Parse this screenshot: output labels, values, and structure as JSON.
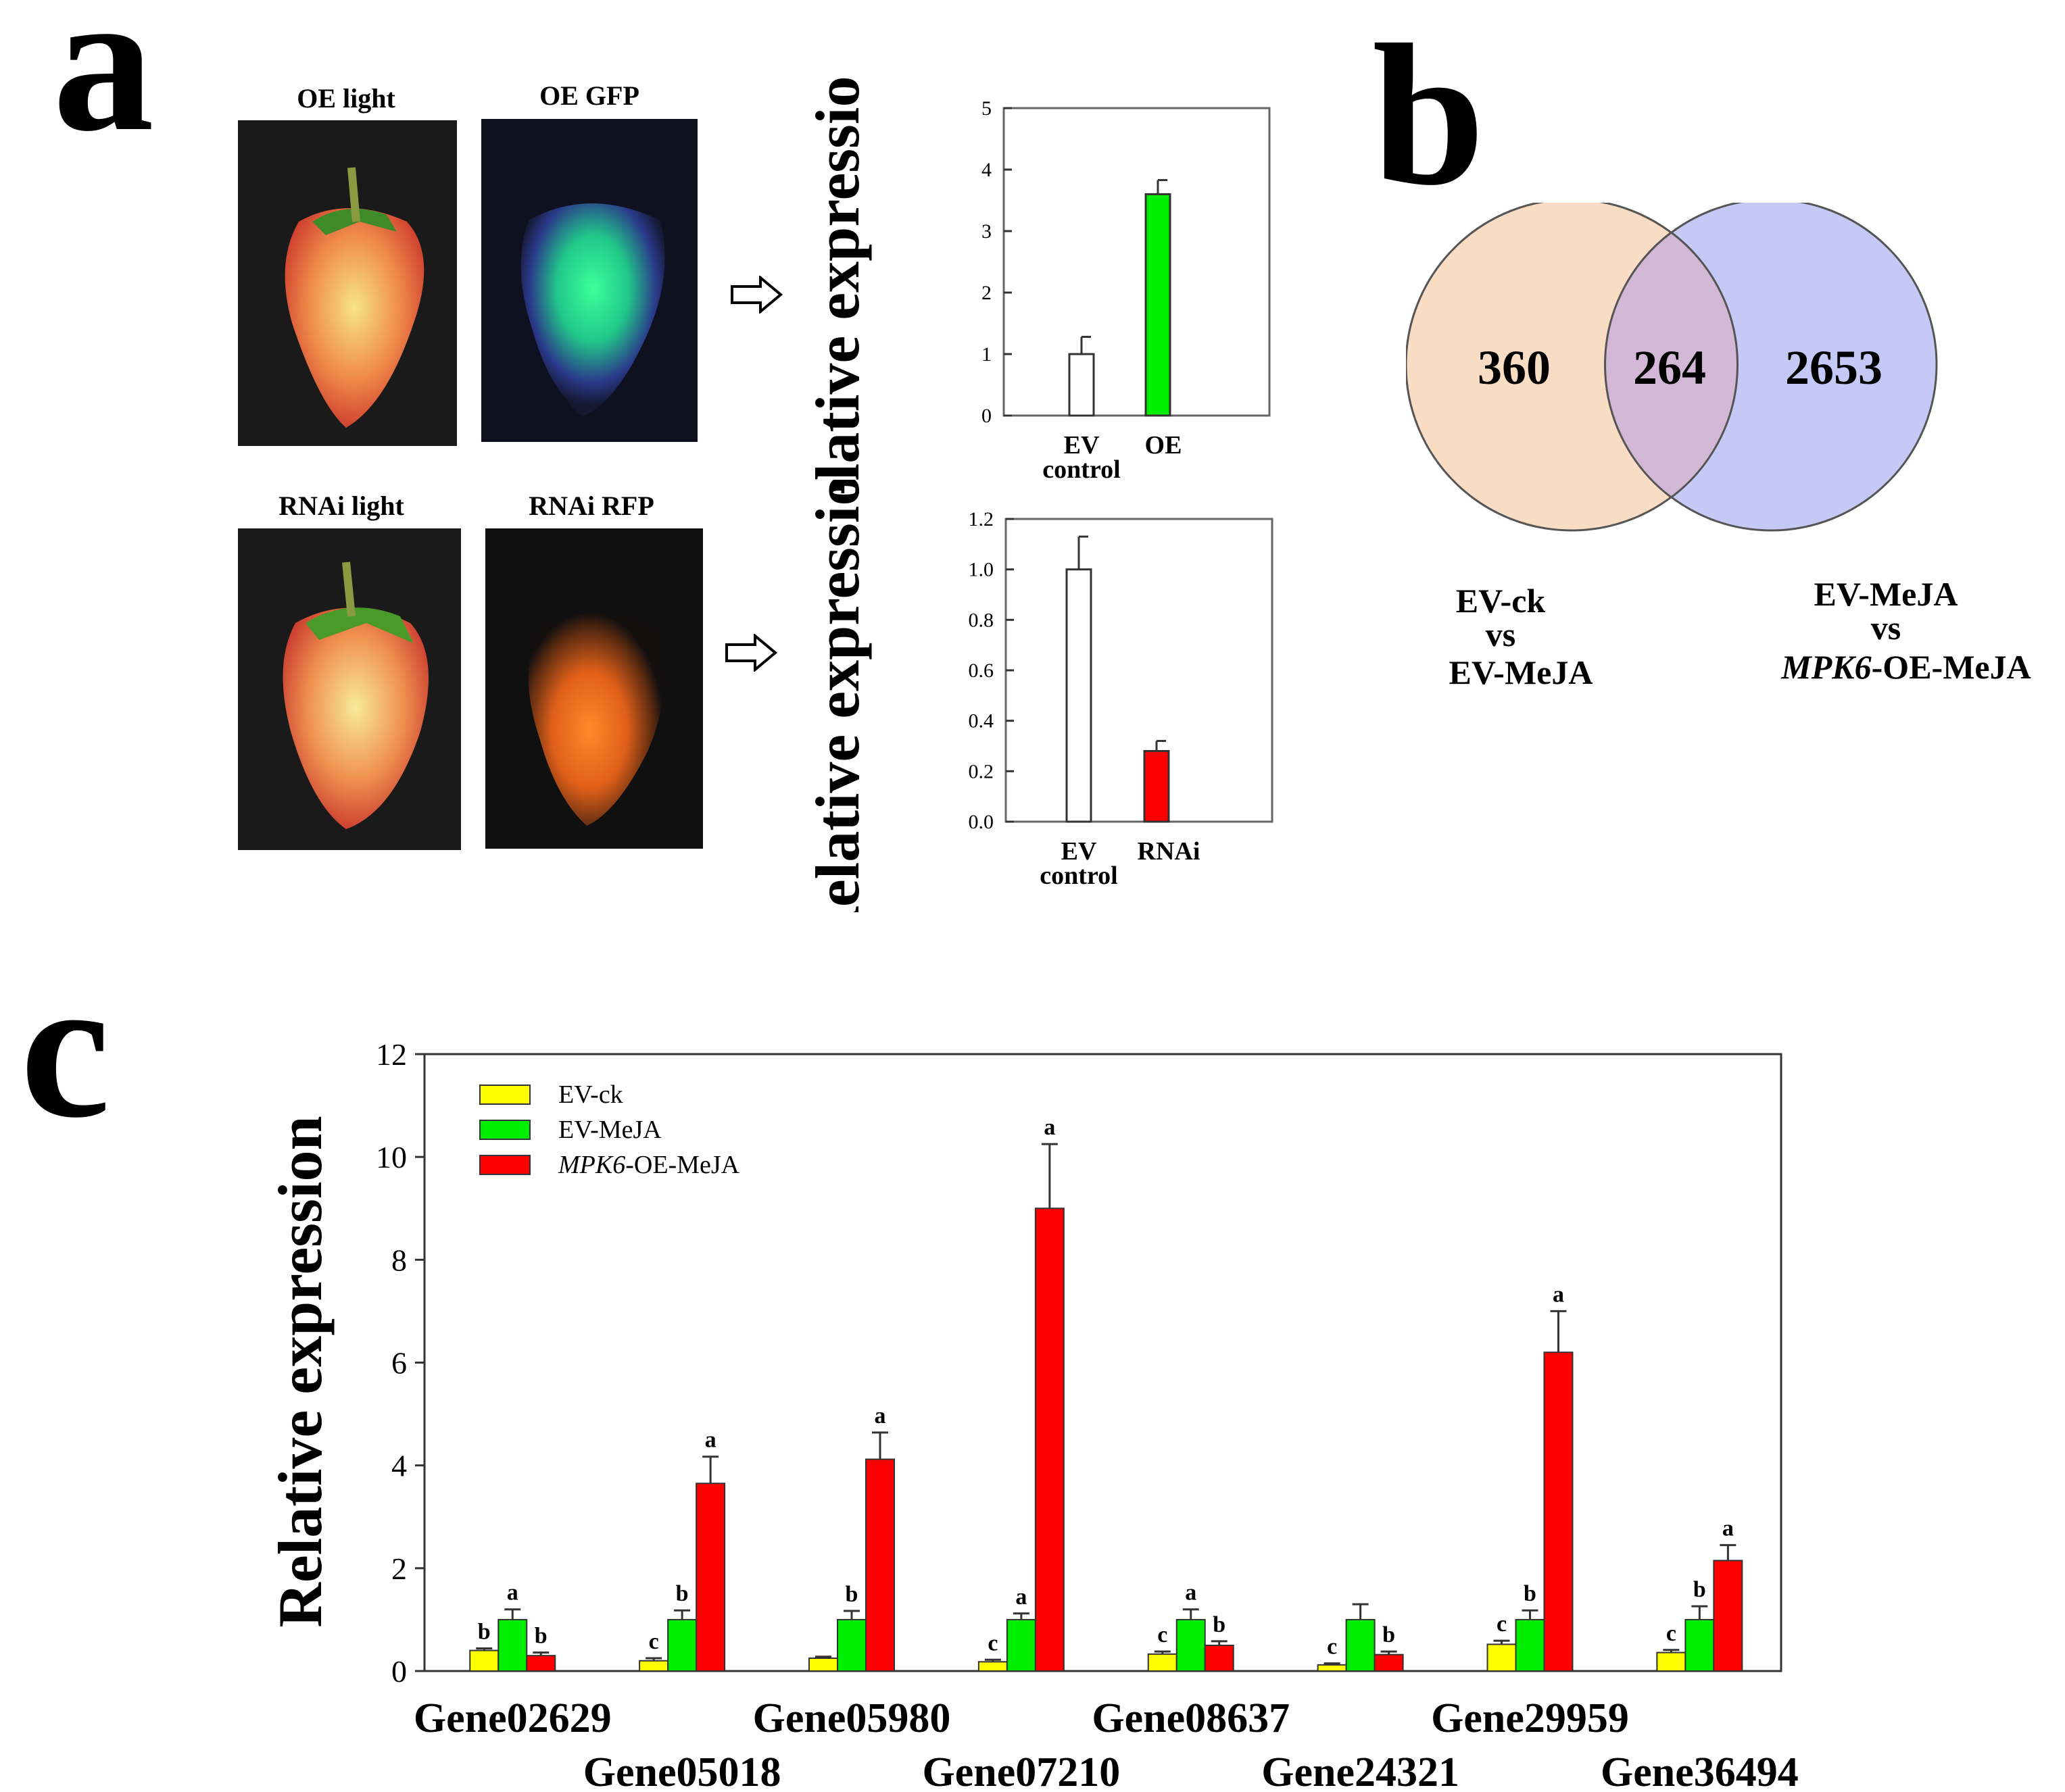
{
  "panels": {
    "a": "a",
    "b": "b",
    "c": "c"
  },
  "photos": {
    "oe_light": "OE light",
    "oe_gfp": "OE GFP",
    "rnai_light": "RNAi light",
    "rnai_rfp": "RNAi RFP"
  },
  "colors": {
    "ev_ck": "#ffff00",
    "ev_meja": "#00ee00",
    "oe_meja": "#ff0000",
    "control": "#ffffff",
    "venn_left": "#f9dcc4",
    "venn_right": "#c5c9f5",
    "venn_overlap": "#d3b7d6"
  },
  "venn": {
    "left_only": "360",
    "overlap": "264",
    "right_only": "2653",
    "left_label": [
      "EV-ck",
      "vs",
      "EV-MeJA"
    ],
    "right_label_line1": "EV-MeJA",
    "right_label_line2": "vs",
    "right_label_line3_italic": "MPK6",
    "right_label_line3_rest": "-OE-MeJA"
  },
  "chart_data": [
    {
      "id": "oe-chart",
      "type": "bar",
      "ylabel": "Relative expression",
      "ylim": [
        0,
        5
      ],
      "yticks": [
        "0",
        "1",
        "2",
        "3",
        "4",
        "5"
      ],
      "categories": [
        [
          "EV",
          "control"
        ],
        [
          "OE"
        ]
      ],
      "values": [
        1.0,
        3.6
      ],
      "errors": [
        0.28,
        0.23
      ],
      "colors": [
        "#ffffff",
        "#00ee00"
      ]
    },
    {
      "id": "rnai-chart",
      "type": "bar",
      "ylabel": "Relative expression",
      "ylim": [
        0,
        1.2
      ],
      "yticks": [
        "0.0",
        "0.2",
        "0.4",
        "0.6",
        "0.8",
        "1.0",
        "1.2"
      ],
      "categories": [
        [
          "EV",
          "control"
        ],
        [
          "RNAi"
        ]
      ],
      "values": [
        1.0,
        0.28
      ],
      "errors": [
        0.13,
        0.04
      ],
      "colors": [
        "#ffffff",
        "#ff0000"
      ]
    },
    {
      "id": "gene-chart",
      "type": "bar",
      "ylabel": "Relative expression",
      "ylim": [
        0,
        12
      ],
      "yticks": [
        "0",
        "2",
        "4",
        "6",
        "8",
        "10",
        "12"
      ],
      "categories": [
        "Gene02629",
        "Gene05018",
        "Gene05980",
        "Gene07210",
        "Gene08637",
        "Gene24321",
        "Gene29959",
        "Gene36494"
      ],
      "legend": [
        "EV-ck",
        "EV-MeJA",
        "MPK6-OE-MeJA"
      ],
      "legend_italic_part": "MPK6",
      "legend_rest": "-OE-MeJA",
      "series": [
        {
          "name": "EV-ck",
          "color": "#ffff00",
          "values": [
            0.4,
            0.2,
            0.25,
            0.18,
            0.33,
            0.12,
            0.52,
            0.36
          ],
          "errors": [
            0.04,
            0.05,
            0.03,
            0.04,
            0.05,
            0.03,
            0.07,
            0.05
          ],
          "letters": [
            "b",
            "c",
            "",
            "c",
            "c",
            "c",
            "c",
            "c"
          ]
        },
        {
          "name": "EV-MeJA",
          "color": "#00ee00",
          "values": [
            1.0,
            1.0,
            1.0,
            1.0,
            1.0,
            1.0,
            1.0,
            1.0
          ],
          "errors": [
            0.2,
            0.18,
            0.17,
            0.12,
            0.2,
            0.3,
            0.18,
            0.26
          ],
          "letters": [
            "a",
            "b",
            "b",
            "a",
            "a",
            "",
            "b",
            "b"
          ]
        },
        {
          "name": "MPK6-OE-MeJA",
          "color": "#ff0000",
          "values": [
            0.3,
            3.65,
            4.12,
            9.0,
            0.5,
            0.32,
            6.2,
            2.15
          ],
          "errors": [
            0.06,
            0.52,
            0.52,
            1.25,
            0.08,
            0.06,
            0.8,
            0.3
          ],
          "letters": [
            "b",
            "a",
            "a",
            "a",
            "b",
            "b",
            "a",
            "a"
          ]
        }
      ]
    }
  ]
}
